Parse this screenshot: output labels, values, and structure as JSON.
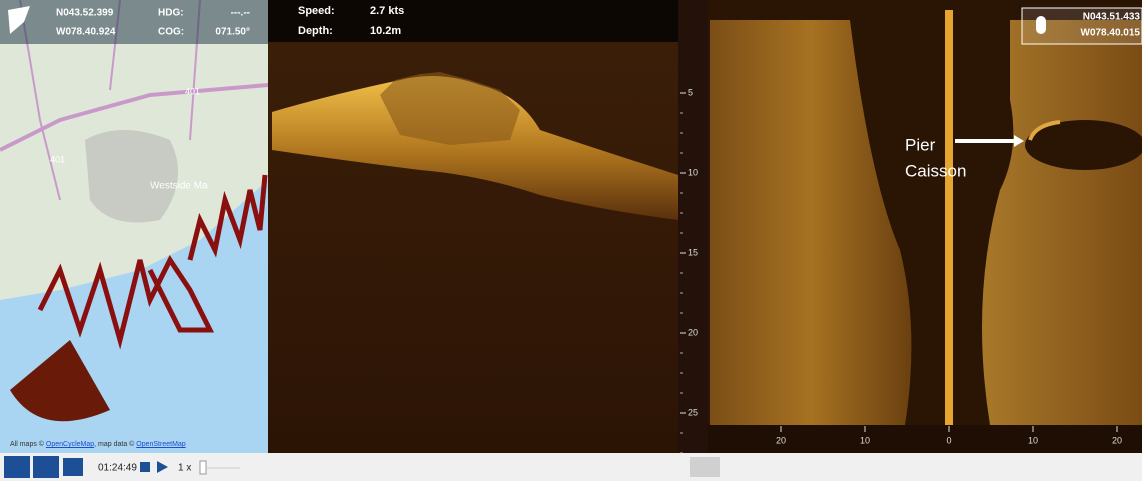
{
  "map": {
    "header": {
      "lat": "N043.52.399",
      "lon": "W078.40.924",
      "hdg_label": "HDG:",
      "hdg_value": "---.--",
      "cog_label": "COG:",
      "cog_value": "071.50°"
    },
    "labels": [
      "401",
      "401",
      "Westside Ma"
    ],
    "attribution": {
      "prefix": "All maps © ",
      "link1": "OpenCycleMap",
      "middle": ", map data © ",
      "link2": "OpenStreetMap"
    }
  },
  "down_view": {
    "speed_label": "Speed:",
    "speed_value": "2.7 kts",
    "depth_label": "Depth:",
    "depth_value": "10.2m",
    "depth_scale": [
      "5",
      "10",
      "15",
      "20",
      "25"
    ]
  },
  "side_view": {
    "cursor": {
      "lat": "N043.51.433",
      "lon": "W078.40.015"
    },
    "annotation": {
      "line1": "Pier",
      "line2": "Caisson"
    },
    "range_scale": [
      "20",
      "10",
      "0",
      "10",
      "20"
    ]
  },
  "playback": {
    "time": "01:24:49",
    "speed": "1 x"
  }
}
